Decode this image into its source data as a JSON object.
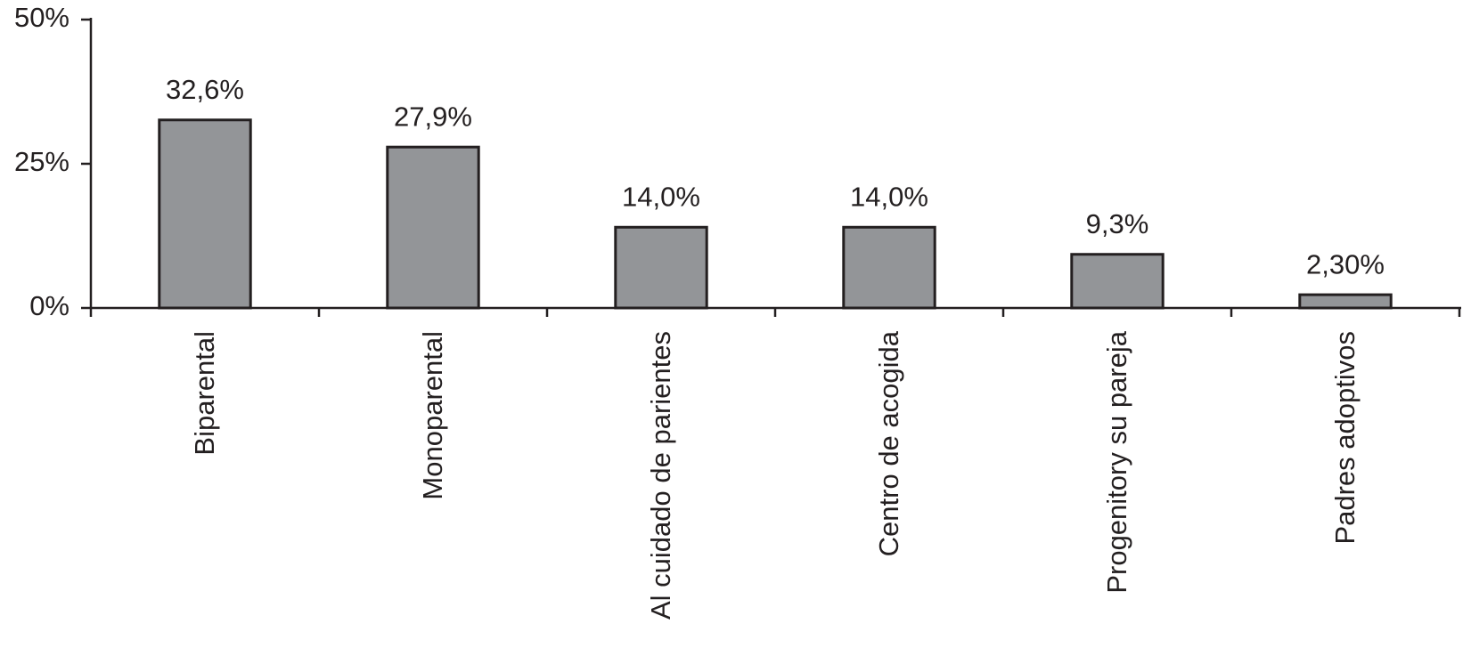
{
  "chart_data": {
    "type": "bar",
    "categories": [
      "Biparental",
      "Monoparental",
      "Al cuidado de parientes",
      "Centro de acogida",
      "Progenitory su pareja",
      "Padres adoptivos"
    ],
    "values": [
      32.6,
      27.9,
      14.0,
      14.0,
      9.3,
      2.3
    ],
    "value_labels": [
      "32,6%",
      "27,9%",
      "14,0%",
      "14,0%",
      "9,3%",
      "2,30%"
    ],
    "color": "#939598",
    "ylim": [
      0,
      50
    ],
    "yticks": [
      {
        "value": 0,
        "label": "0%"
      },
      {
        "value": 25,
        "label": "25%"
      },
      {
        "value": 50,
        "label": "50%"
      }
    ],
    "grid": false
  }
}
